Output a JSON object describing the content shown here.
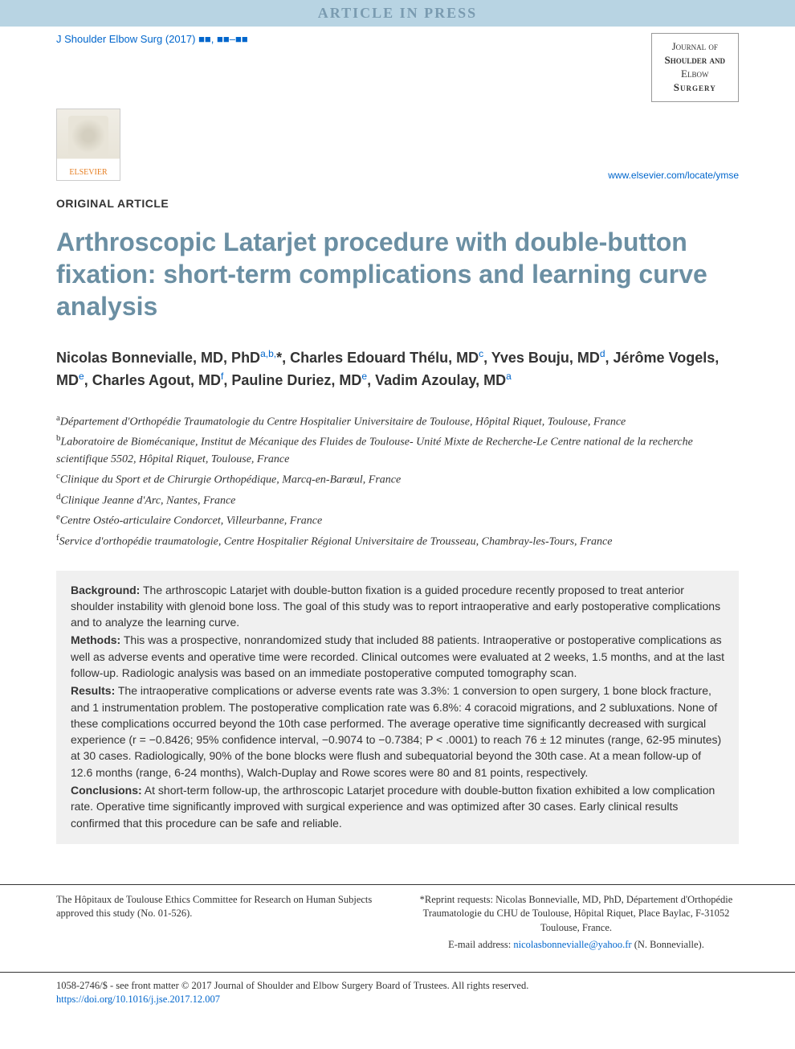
{
  "banner": "ARTICLE IN PRESS",
  "citation": {
    "journal_abbrev": "J Shoulder Elbow Surg",
    "year": "(2017)",
    "vol_placeholder": "■■",
    "pages_placeholder": "■■–■■"
  },
  "journal_box": {
    "line1": "Journal of",
    "line2": "Shoulder and",
    "line3": "Elbow",
    "line4": "Surgery"
  },
  "publisher_logo": "ELSEVIER",
  "journal_url": "www.elsevier.com/locate/ymse",
  "article_type": "ORIGINAL ARTICLE",
  "title": "Arthroscopic Latarjet procedure with double-button fixation: short-term complications and learning curve analysis",
  "authors_html": "Nicolas Bonnevialle, MD, PhD<sup>a,b,</sup>*, Charles Edouard Thélu, MD<sup>c</sup>, Yves Bouju, MD<sup>d</sup>, Jérôme Vogels, MD<sup>e</sup>, Charles Agout, MD<sup>f</sup>, Pauline Duriez, MD<sup>e</sup>, Vadim Azoulay, MD<sup>a</sup>",
  "affiliations": [
    {
      "sup": "a",
      "text": "Département d'Orthopédie Traumatologie du Centre Hospitalier Universitaire de Toulouse, Hôpital Riquet, Toulouse, France"
    },
    {
      "sup": "b",
      "text": "Laboratoire de Biomécanique, Institut de Mécanique des Fluides de Toulouse- Unité Mixte de Recherche-Le Centre national de la recherche scientifique 5502, Hôpital Riquet, Toulouse, France"
    },
    {
      "sup": "c",
      "text": "Clinique du Sport et de Chirurgie Orthopédique, Marcq-en-Barœul, France"
    },
    {
      "sup": "d",
      "text": "Clinique Jeanne d'Arc, Nantes, France"
    },
    {
      "sup": "e",
      "text": "Centre Ostéo-articulaire Condorcet, Villeurbanne, France"
    },
    {
      "sup": "f",
      "text": "Service d'orthopédie traumatologie, Centre Hospitalier Régional Universitaire de Trousseau, Chambray-les-Tours, France"
    }
  ],
  "abstract": {
    "background_label": "Background:",
    "background": "The arthroscopic Latarjet with double-button fixation is a guided procedure recently proposed to treat anterior shoulder instability with glenoid bone loss. The goal of this study was to report intraoperative and early postoperative complications and to analyze the learning curve.",
    "methods_label": "Methods:",
    "methods": "This was a prospective, nonrandomized study that included 88 patients. Intraoperative or postoperative complications as well as adverse events and operative time were recorded. Clinical outcomes were evaluated at 2 weeks, 1.5 months, and at the last follow-up. Radiologic analysis was based on an immediate postoperative computed tomography scan.",
    "results_label": "Results:",
    "results": "The intraoperative complications or adverse events rate was 3.3%: 1 conversion to open surgery, 1 bone block fracture, and 1 instrumentation problem. The postoperative complication rate was 6.8%: 4 coracoid migrations, and 2 subluxations. None of these complications occurred beyond the 10th case performed. The average operative time significantly decreased with surgical experience (r = −0.8426; 95% confidence interval, −0.9074 to −0.7384; P < .0001) to reach 76 ± 12 minutes (range, 62-95 minutes) at 30 cases. Radiologically, 90% of the bone blocks were flush and subequatorial beyond the 30th case. At a mean follow-up of 12.6 months (range, 6-24 months), Walch-Duplay and Rowe scores were 80 and 81 points, respectively.",
    "conclusions_label": "Conclusions:",
    "conclusions": "At short-term follow-up, the arthroscopic Latarjet procedure with double-button fixation exhibited a low complication rate. Operative time significantly improved with surgical experience and was optimized after 30 cases. Early clinical results confirmed that this procedure can be safe and reliable."
  },
  "footer": {
    "ethics": "The Hôpitaux de Toulouse Ethics Committee for Research on Human Subjects approved this study (No. 01-526).",
    "reprint_label": "*Reprint requests:",
    "reprint": "Nicolas Bonnevialle, MD, PhD, Département d'Orthopédie Traumatologie du CHU de Toulouse, Hôpital Riquet, Place Baylac, F-31052 Toulouse, France.",
    "email_label": "E-mail address:",
    "email": "nicolasbonnevialle@yahoo.fr",
    "email_attribution": "(N. Bonnevialle)."
  },
  "copyright": {
    "issn": "1058-2746/$ - see front matter",
    "text": "© 2017 Journal of Shoulder and Elbow Surgery Board of Trustees. All rights reserved.",
    "doi": "https://doi.org/10.1016/j.jse.2017.12.007"
  },
  "colors": {
    "banner_bg": "#b8d4e3",
    "banner_text": "#7a9bb0",
    "title_color": "#6b8fa3",
    "link_color": "#0066cc",
    "abstract_bg": "#f0f0f0"
  }
}
